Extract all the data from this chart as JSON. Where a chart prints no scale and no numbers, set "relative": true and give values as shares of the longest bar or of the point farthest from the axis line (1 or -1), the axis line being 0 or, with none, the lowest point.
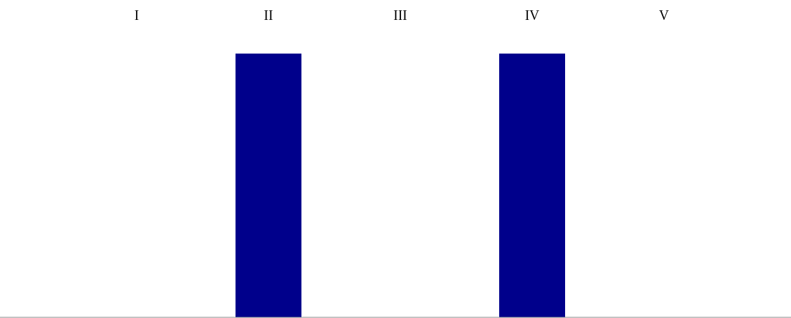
{
  "chart_data": {
    "type": "bar",
    "categories": [
      "I",
      "II",
      "III",
      "IV",
      "V"
    ],
    "values": [
      0,
      1,
      0,
      1,
      0
    ],
    "color": "#00008b",
    "relative": true
  }
}
